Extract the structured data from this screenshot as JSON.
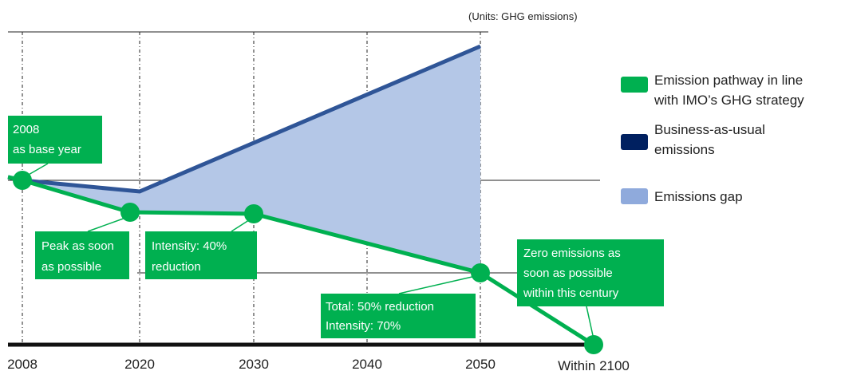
{
  "units_note": "(Units: GHG emissions)",
  "x_labels": [
    "2008",
    "2020",
    "2030",
    "2040",
    "2050",
    "Within 2100"
  ],
  "annotations": [
    {
      "lines": [
        "2008",
        "as base year"
      ]
    },
    {
      "lines": [
        "Peak as soon",
        "as possible"
      ]
    },
    {
      "lines": [
        "Intensity: 40%",
        "reduction"
      ]
    },
    {
      "lines": [
        "Total: 50% reduction",
        "Intensity: 70%"
      ]
    },
    {
      "lines": [
        "Zero emissions as",
        "soon as possible",
        "within this century"
      ]
    }
  ],
  "legend": [
    {
      "lines": [
        "Emission pathway in line",
        "with IMO’s GHG strategy"
      ]
    },
    {
      "lines": [
        "Business-as-usual",
        "emissions"
      ]
    },
    {
      "lines": [
        "Emissions gap"
      ]
    }
  ]
}
